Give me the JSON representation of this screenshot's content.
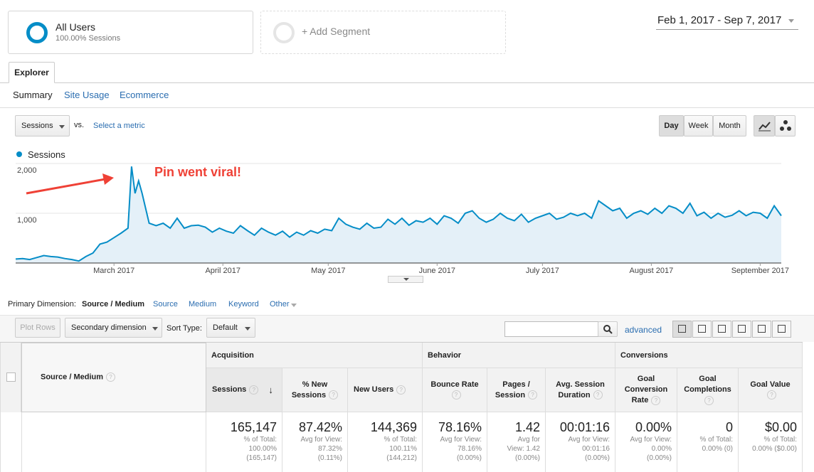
{
  "segments": [
    {
      "name": "All Users",
      "detail": "100.00% Sessions"
    },
    {
      "name": "+ Add Segment"
    }
  ],
  "date_range": "Feb 1, 2017 - Sep 7, 2017",
  "tabs": [
    "Explorer"
  ],
  "subtabs": [
    "Summary",
    "Site Usage",
    "Ecommerce"
  ],
  "metric_selector": {
    "metric": "Sessions",
    "vs": "vs.",
    "compare": "Select a metric"
  },
  "granularity": [
    "Day",
    "Week",
    "Month"
  ],
  "chart_data": {
    "type": "line",
    "annotation": "Pin went viral!",
    "x": [
      0,
      2,
      4,
      6,
      8,
      10,
      12,
      14,
      16,
      18,
      20,
      22,
      24,
      26,
      28,
      30,
      32,
      33,
      34,
      35,
      36,
      38,
      40,
      42,
      44,
      46,
      48,
      50,
      52,
      54,
      56,
      58,
      60,
      62,
      64,
      66,
      68,
      70,
      72,
      74,
      76,
      78,
      80,
      82,
      84,
      86,
      88,
      90,
      92,
      94,
      96,
      98,
      100,
      102,
      104,
      106,
      108,
      110,
      112,
      114,
      116,
      118,
      120,
      122,
      124,
      126,
      128,
      130,
      132,
      134,
      136,
      138,
      140,
      142,
      144,
      146,
      148,
      150,
      152,
      154,
      156,
      158,
      160,
      162,
      164,
      166,
      168,
      170,
      172,
      174,
      176,
      178,
      180,
      182,
      184,
      186,
      188,
      190,
      192,
      194,
      196,
      198,
      200,
      202,
      204,
      206,
      208,
      210,
      212,
      214,
      216,
      218
    ],
    "series": [
      {
        "name": "Sessions",
        "color": "#058dc7",
        "values": [
          80,
          90,
          70,
          110,
          150,
          130,
          120,
          90,
          70,
          40,
          130,
          200,
          380,
          420,
          510,
          600,
          700,
          1940,
          1400,
          1650,
          1400,
          800,
          750,
          800,
          700,
          900,
          700,
          750,
          760,
          720,
          620,
          700,
          640,
          600,
          750,
          650,
          560,
          700,
          620,
          560,
          640,
          520,
          620,
          560,
          650,
          600,
          680,
          650,
          900,
          780,
          720,
          680,
          800,
          700,
          720,
          880,
          780,
          900,
          760,
          850,
          820,
          900,
          780,
          950,
          900,
          800,
          1000,
          1050,
          900,
          820,
          880,
          1000,
          900,
          850,
          980,
          820,
          900,
          950,
          1000,
          880,
          920,
          1000,
          950,
          1000,
          900,
          1250,
          1150,
          1050,
          1100,
          900,
          1000,
          1050,
          980,
          1100,
          1000,
          1150,
          1100,
          1000,
          1200,
          950,
          1020,
          900,
          1000,
          920,
          960,
          1050,
          950,
          1020,
          1000,
          900,
          1150,
          950
        ]
      }
    ],
    "xlim": [
      0,
      218
    ],
    "xticks": [
      {
        "value": 28,
        "label": "March 2017"
      },
      {
        "value": 59,
        "label": "April 2017"
      },
      {
        "value": 89,
        "label": "May 2017"
      },
      {
        "value": 120,
        "label": "June 2017"
      },
      {
        "value": 150,
        "label": "July 2017"
      },
      {
        "value": 181,
        "label": "August 2017"
      },
      {
        "value": 212,
        "label": "September 2017"
      }
    ],
    "ylim": [
      0,
      2000
    ],
    "yticks": [
      {
        "value": 1000,
        "label": "1,000"
      },
      {
        "value": 2000,
        "label": "2,000"
      }
    ],
    "grid": true
  },
  "dimension_bar": {
    "label": "Primary Dimension:",
    "options": [
      "Source / Medium",
      "Source",
      "Medium",
      "Keyword",
      "Other"
    ]
  },
  "toolbar": {
    "plot_rows": "Plot Rows",
    "secondary": "Secondary dimension",
    "sort_label": "Sort Type:",
    "sort": "Default",
    "advanced": "advanced"
  },
  "table": {
    "dimension_header": "Source / Medium",
    "groups": [
      "Acquisition",
      "Behavior",
      "Conversions"
    ],
    "columns": [
      {
        "header": "Sessions",
        "value": "165,147",
        "note": [
          "% of Total:",
          "100.00%",
          "(165,147)"
        ]
      },
      {
        "header": "% New Sessions",
        "value": "87.42%",
        "note": [
          "Avg for View:",
          "87.32%",
          "(0.11%)"
        ]
      },
      {
        "header": "New Users",
        "value": "144,369",
        "note": [
          "% of Total:",
          "100.11%",
          "(144,212)"
        ]
      },
      {
        "header": "Bounce Rate",
        "value": "78.16%",
        "note": [
          "Avg for View:",
          "78.16%",
          "(0.00%)"
        ]
      },
      {
        "header": "Pages / Session",
        "value": "1.42",
        "note": [
          "Avg for",
          "View: 1.42",
          "(0.00%)"
        ]
      },
      {
        "header": "Avg. Session Duration",
        "value": "00:01:16",
        "note": [
          "Avg for View:",
          "00:01:16",
          "(0.00%)"
        ]
      },
      {
        "header": "Goal Conversion Rate",
        "value": "0.00%",
        "note": [
          "Avg for View:",
          "0.00%",
          "(0.00%)"
        ]
      },
      {
        "header": "Goal Completions",
        "value": "0",
        "note": [
          "% of Total:",
          "0.00% (0)"
        ]
      },
      {
        "header": "Goal Value",
        "value": "$0.00",
        "note": [
          "% of Total:",
          "0.00% ($0.00)"
        ]
      }
    ]
  }
}
